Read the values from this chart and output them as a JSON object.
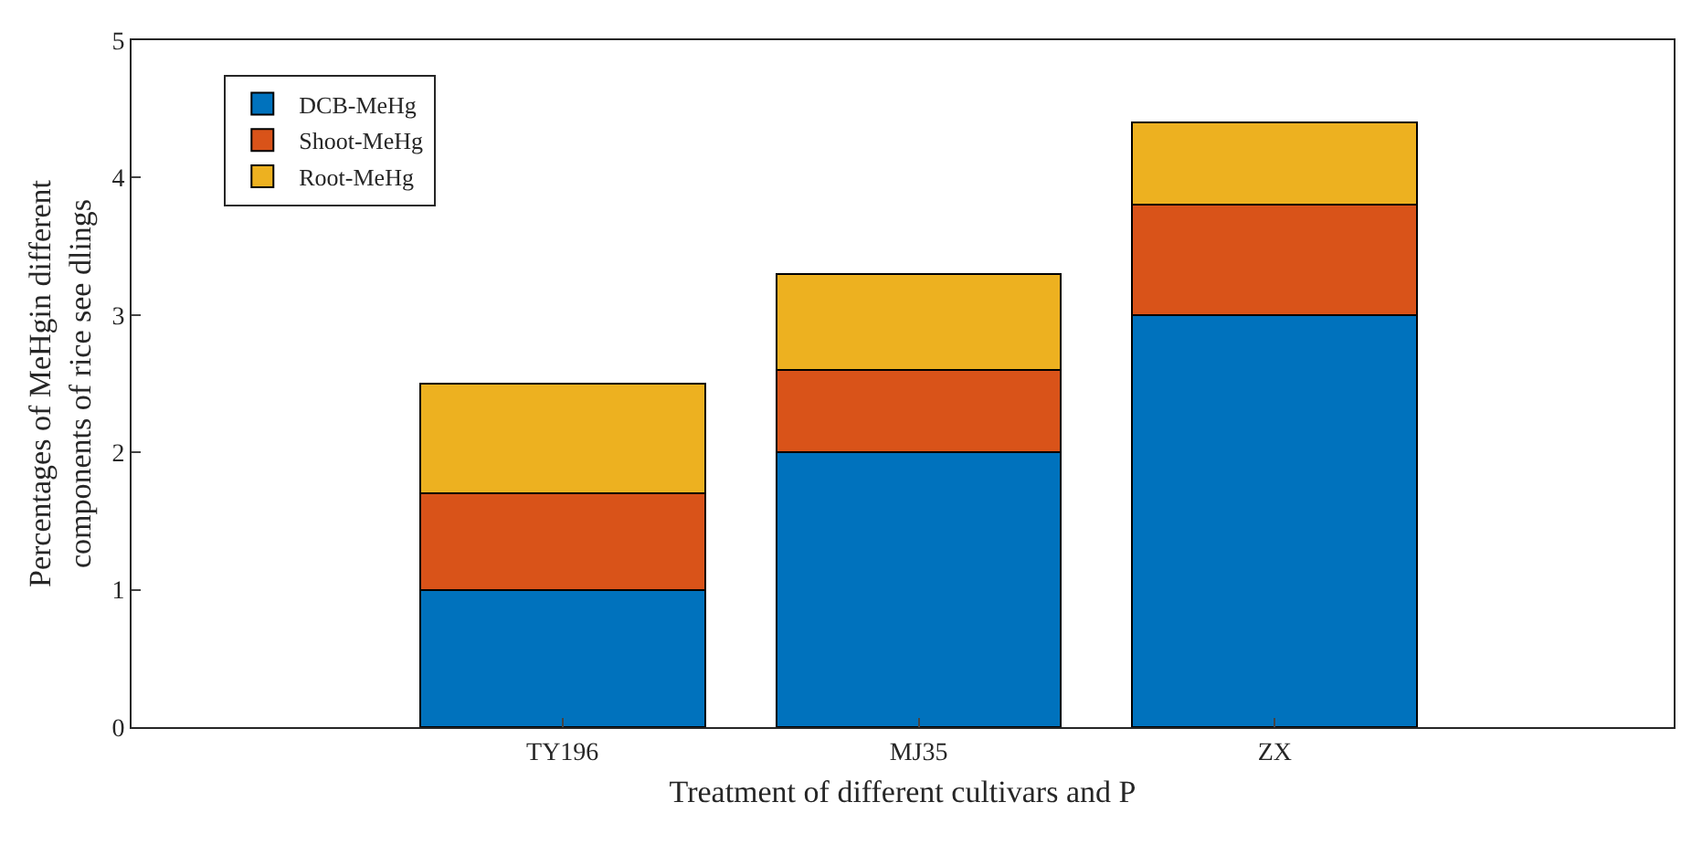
{
  "chart_data": {
    "type": "bar",
    "stacked": true,
    "xlabel": "Treatment of different cultivars and P",
    "ylabel": "Percentages of MeHgin different\ncomponents of rice see dlings",
    "categories": [
      "TY196",
      "MJ35",
      "ZX"
    ],
    "series": [
      {
        "name": "DCB-MeHg",
        "color": "#0072bd",
        "values": [
          1,
          2,
          3
        ]
      },
      {
        "name": "Shoot-MeHg",
        "color": "#d95319",
        "values": [
          0.7,
          0.6,
          0.8
        ]
      },
      {
        "name": "Root-MeHg",
        "color": "#edb120",
        "values": [
          0.8,
          0.7,
          0.6
        ]
      }
    ],
    "ylim": [
      0,
      5
    ],
    "yticks": [
      0,
      1,
      2,
      3,
      4,
      5
    ],
    "grid": false,
    "legend": "top left"
  }
}
